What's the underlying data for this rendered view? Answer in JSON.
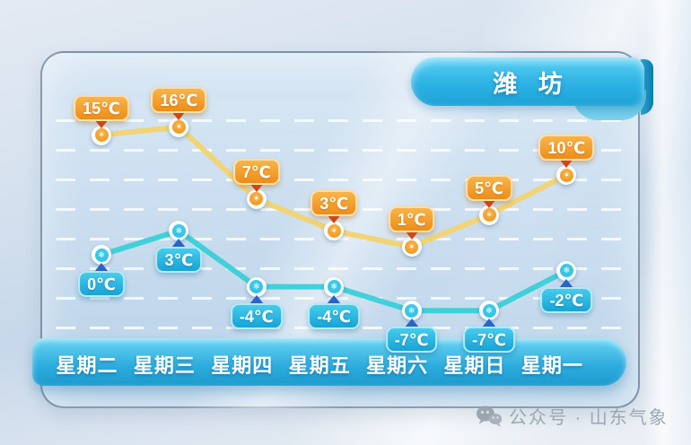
{
  "title": "潍 坊",
  "watermark": {
    "icon": "wechat-icon",
    "text": "公众号 · 山东气象"
  },
  "chart_data": {
    "type": "line",
    "title": "潍 坊",
    "categories": [
      "星期二",
      "星期三",
      "星期四",
      "星期五",
      "星期六",
      "星期日",
      "星期一"
    ],
    "unit": "℃",
    "series": [
      {
        "name": "high",
        "values": [
          15,
          16,
          7,
          3,
          1,
          5,
          10
        ],
        "labels": [
          "15℃",
          "16℃",
          "7℃",
          "3℃",
          "1℃",
          "5℃",
          "10℃"
        ],
        "line_color": "#f2d36e",
        "chip_color_top": "#f8b54a",
        "chip_color_bottom": "#ee8d18",
        "pointer_color": "#e0411a",
        "point_color": "#f09018",
        "point_glyph": "✶",
        "label_position": "above"
      },
      {
        "name": "low",
        "values": [
          0,
          3,
          -4,
          -4,
          -7,
          -7,
          -2
        ],
        "labels": [
          "0℃",
          "3℃",
          "-4℃",
          "-4℃",
          "-7℃",
          "-7℃",
          "-2℃"
        ],
        "line_color": "#3ad0d8",
        "chip_color_top": "#45cdec",
        "chip_color_bottom": "#17a3d6",
        "pointer_color": "#2a64c8",
        "point_color": "#29bfe4",
        "point_glyph": "❄",
        "label_position": "below"
      }
    ],
    "ylim": [
      -9,
      18
    ],
    "grid": "dashed-horizontal-white",
    "legend": "none",
    "xaxis_style": "blue-ribbon-bar"
  }
}
